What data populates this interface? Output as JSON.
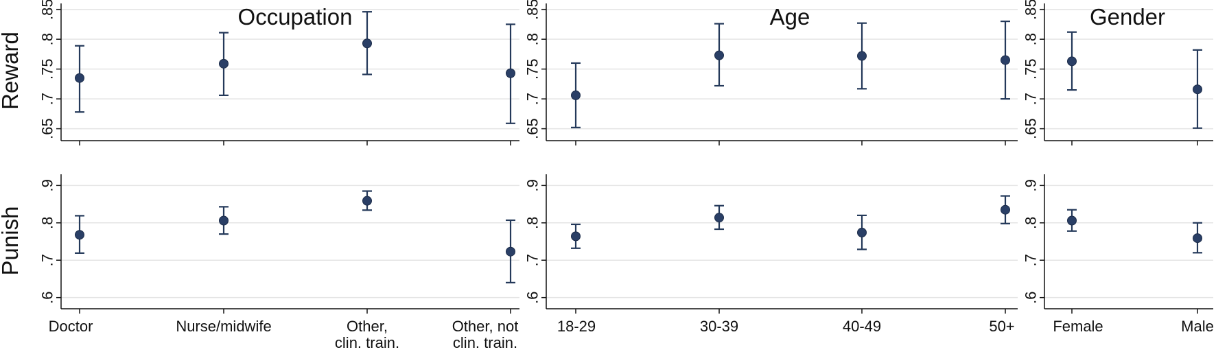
{
  "colors": {
    "marker": "#2a3f66",
    "errorbar": "#24395a",
    "grid": "#e4e4e4",
    "axis": "#111111"
  },
  "row_labels": [
    "Reward",
    "Punish"
  ],
  "panel_titles": [
    "Occupation",
    "Age",
    "Gender"
  ],
  "chart_data": [
    {
      "type": "scatter",
      "title": "Occupation",
      "ylabel": "Reward",
      "categories": [
        "Doctor",
        "Nurse/midwife",
        "Other,\nclin. train.",
        "Other, not\nclin. train."
      ],
      "values": [
        0.735,
        0.759,
        0.793,
        0.743
      ],
      "ci_low": [
        0.678,
        0.706,
        0.741,
        0.659
      ],
      "ci_high": [
        0.789,
        0.811,
        0.846,
        0.825
      ],
      "yticks": [
        0.65,
        0.7,
        0.75,
        0.8,
        0.85
      ],
      "ytick_labels": [
        ".65",
        ".7",
        ".75",
        ".8",
        ".85"
      ],
      "ylim": [
        0.63,
        0.86
      ],
      "grid": true
    },
    {
      "type": "scatter",
      "title": "Age",
      "ylabel": "Reward",
      "categories": [
        "18-29",
        "30-39",
        "40-49",
        "50+"
      ],
      "values": [
        0.706,
        0.773,
        0.772,
        0.765
      ],
      "ci_low": [
        0.652,
        0.722,
        0.717,
        0.7
      ],
      "ci_high": [
        0.76,
        0.826,
        0.827,
        0.83
      ],
      "yticks": [
        0.65,
        0.7,
        0.75,
        0.8,
        0.85
      ],
      "ytick_labels": [
        ".65",
        ".7",
        ".75",
        ".8",
        ".85"
      ],
      "ylim": [
        0.63,
        0.86
      ],
      "grid": true
    },
    {
      "type": "scatter",
      "title": "Gender",
      "ylabel": "Reward",
      "categories": [
        "Female",
        "Male"
      ],
      "values": [
        0.763,
        0.716
      ],
      "ci_low": [
        0.715,
        0.651
      ],
      "ci_high": [
        0.812,
        0.782
      ],
      "yticks": [
        0.65,
        0.7,
        0.75,
        0.8,
        0.85
      ],
      "ytick_labels": [
        ".65",
        ".7",
        ".75",
        ".8",
        ".85"
      ],
      "ylim": [
        0.63,
        0.86
      ],
      "grid": true
    },
    {
      "type": "scatter",
      "title": "",
      "ylabel": "Punish",
      "categories": [
        "Doctor",
        "Nurse/midwife",
        "Other,\nclin. train.",
        "Other, not\nclin. train."
      ],
      "values": [
        0.768,
        0.806,
        0.859,
        0.723
      ],
      "ci_low": [
        0.719,
        0.77,
        0.834,
        0.64
      ],
      "ci_high": [
        0.819,
        0.843,
        0.885,
        0.807
      ],
      "yticks": [
        0.6,
        0.7,
        0.8,
        0.9
      ],
      "ytick_labels": [
        ".6",
        ".7",
        ".8",
        ".9"
      ],
      "ylim": [
        0.57,
        0.93
      ],
      "grid": true
    },
    {
      "type": "scatter",
      "title": "",
      "ylabel": "Punish",
      "categories": [
        "18-29",
        "30-39",
        "40-49",
        "50+"
      ],
      "values": [
        0.764,
        0.814,
        0.774,
        0.835
      ],
      "ci_low": [
        0.732,
        0.783,
        0.729,
        0.798
      ],
      "ci_high": [
        0.796,
        0.846,
        0.82,
        0.872
      ],
      "yticks": [
        0.6,
        0.7,
        0.8,
        0.9
      ],
      "ytick_labels": [
        ".6",
        ".7",
        ".8",
        ".9"
      ],
      "ylim": [
        0.57,
        0.93
      ],
      "grid": true
    },
    {
      "type": "scatter",
      "title": "",
      "ylabel": "Punish",
      "categories": [
        "Female",
        "Male"
      ],
      "values": [
        0.806,
        0.759
      ],
      "ci_low": [
        0.778,
        0.72
      ],
      "ci_high": [
        0.835,
        0.8
      ],
      "yticks": [
        0.6,
        0.7,
        0.8,
        0.9
      ],
      "ytick_labels": [
        ".6",
        ".7",
        ".8",
        ".9"
      ],
      "ylim": [
        0.57,
        0.93
      ],
      "grid": true
    }
  ]
}
